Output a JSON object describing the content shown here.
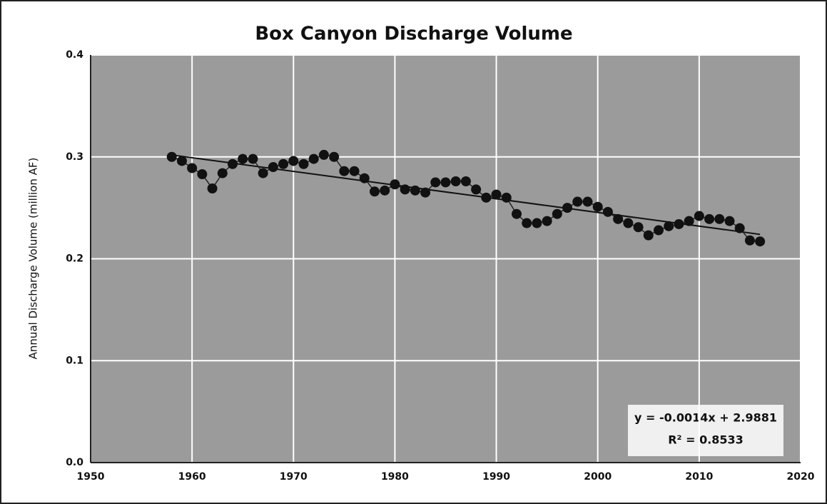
{
  "chart_data": {
    "type": "scatter",
    "title": "Box Canyon Discharge Volume",
    "y_label": "Annual Discharge Volume (million AF)",
    "annotations": [
      "y = -0.0014x + 2.9881",
      "R² = 0.8533"
    ],
    "series": [
      {
        "color": "#111111",
        "x": [
          1958,
          1959,
          1960,
          1961,
          1962,
          1963,
          1964,
          1965,
          1966,
          1967,
          1968,
          1969,
          1970,
          1971,
          1972,
          1973,
          1974,
          1975,
          1976,
          1977,
          1978,
          1979,
          1980,
          1981,
          1982,
          1983,
          1984,
          1985,
          1986,
          1987,
          1988,
          1989,
          1990,
          1991,
          1992,
          1993,
          1994,
          1995,
          1996,
          1997,
          1998,
          1999,
          2000,
          2001,
          2002,
          2003,
          2004,
          2005,
          2006,
          2007,
          2008,
          2009,
          2010,
          2011,
          2012,
          2013,
          2014,
          2015,
          2016
        ],
        "values": [
          0.3,
          0.296,
          0.289,
          0.283,
          0.269,
          0.284,
          0.293,
          0.298,
          0.298,
          0.284,
          0.29,
          0.293,
          0.296,
          0.293,
          0.298,
          0.302,
          0.3,
          0.286,
          0.286,
          0.279,
          0.266,
          0.267,
          0.273,
          0.268,
          0.267,
          0.265,
          0.275,
          0.275,
          0.276,
          0.276,
          0.268,
          0.26,
          0.263,
          0.26,
          0.244,
          0.235,
          0.235,
          0.237,
          0.244,
          0.25,
          0.256,
          0.256,
          0.251,
          0.246,
          0.239,
          0.235,
          0.231,
          0.223,
          0.228,
          0.232,
          0.234,
          0.237,
          0.242,
          0.239,
          0.239,
          0.237,
          0.23,
          0.218,
          0.217
        ]
      }
    ],
    "trendline": true,
    "xlim": [
      1950,
      2020
    ],
    "xticks": [
      1950,
      1960,
      1970,
      1980,
      1990,
      2000,
      2010,
      2020
    ],
    "ylim": [
      0,
      0.4
    ],
    "yticks": [
      {
        "value": 0,
        "label": "0.0"
      },
      0.1,
      0.2,
      0.3,
      0.4
    ],
    "grid": true
  }
}
